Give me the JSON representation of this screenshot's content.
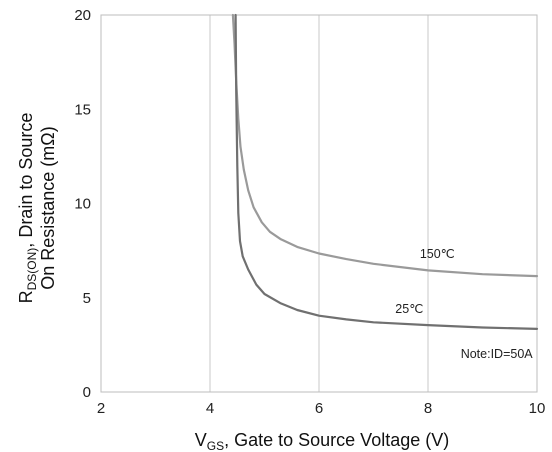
{
  "chart_data": {
    "type": "line",
    "xlabel": {
      "main": "V",
      "sub": "GS",
      "rest": ", Gate to Source Voltage (V)"
    },
    "ylabel": {
      "line1": {
        "main": "R",
        "sub": "DS(ON)",
        "rest": ", Drain to Source"
      },
      "line2": "On Resistance (mΩ)"
    },
    "xlim": [
      2,
      10
    ],
    "ylim": [
      0,
      20
    ],
    "xticks": [
      2,
      4,
      6,
      8,
      10
    ],
    "yticks": [
      0,
      5,
      10,
      15,
      20
    ],
    "grid": {
      "vertical": true,
      "horizontal": false
    },
    "series": [
      {
        "name": "150℃",
        "color": "#9a9a9a",
        "x": [
          4.42,
          4.45,
          4.48,
          4.52,
          4.56,
          4.62,
          4.7,
          4.8,
          4.95,
          5.1,
          5.3,
          5.6,
          6.0,
          6.5,
          7.0,
          8.0,
          9.0,
          10.0
        ],
        "y": [
          20,
          18.5,
          16.5,
          14.5,
          13.0,
          11.8,
          10.7,
          9.8,
          9.0,
          8.5,
          8.1,
          7.7,
          7.35,
          7.05,
          6.8,
          6.45,
          6.25,
          6.15
        ]
      },
      {
        "name": "25℃",
        "color": "#707070",
        "x": [
          4.47,
          4.48,
          4.5,
          4.52,
          4.55,
          4.6,
          4.7,
          4.85,
          5.0,
          5.3,
          5.6,
          6.0,
          6.5,
          7.0,
          8.0,
          9.0,
          10.0
        ],
        "y": [
          20,
          16,
          12,
          9.5,
          8.0,
          7.2,
          6.5,
          5.7,
          5.2,
          4.7,
          4.35,
          4.05,
          3.85,
          3.7,
          3.55,
          3.42,
          3.35
        ]
      }
    ],
    "annotations": [
      {
        "text": "150℃",
        "x": 7.85,
        "y": 7.1
      },
      {
        "text": "25℃",
        "x": 7.4,
        "y": 4.2
      },
      {
        "text": "Note:ID=50A",
        "x": 8.6,
        "y": 1.8
      }
    ]
  }
}
